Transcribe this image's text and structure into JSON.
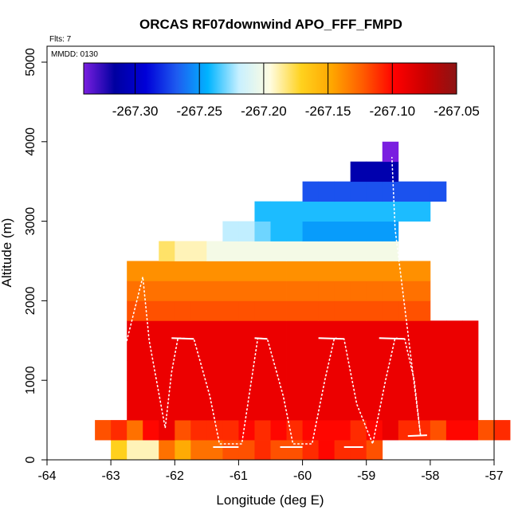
{
  "chart_data": {
    "type": "heatmap",
    "title": "ORCAS RF07downwind APO_FFF_FMPD",
    "flights_label": "Flts: 7",
    "date_label": "MMDD: 0130",
    "xlabel": "Longitude (deg E)",
    "ylabel": "Altitude (m)",
    "xlim": [
      -64,
      -57
    ],
    "ylim": [
      0,
      5200
    ],
    "xticks": [
      "-64",
      "-63",
      "-62",
      "-61",
      "-60",
      "-59",
      "-58",
      "-57"
    ],
    "yticks": [
      "0",
      "1000",
      "2000",
      "3000",
      "4000",
      "5000"
    ],
    "colorbar": {
      "range": [
        -267.34,
        -267.05
      ],
      "ticks": [
        -267.3,
        -267.25,
        -267.2,
        -267.15,
        -267.1,
        -267.05
      ],
      "tick_labels": [
        "-267.30",
        "-267.25",
        "-267.20",
        "-267.15",
        "-267.10",
        "-267.05"
      ],
      "colors": [
        "#7a1fe0",
        "#0000a0",
        "#0000d8",
        "#1e5cf0",
        "#00b4ff",
        "#c8f0ff",
        "#fffce0",
        "#ffd21e",
        "#ffa500",
        "#ff5a00",
        "#ff0000",
        "#c80000",
        "#8c1414"
      ]
    },
    "cell_lon_width": 0.25,
    "cell_alt_height": 250,
    "rows": [
      {
        "alt": 0,
        "lon_start": -63.0,
        "values": [
          -267.17,
          -267.19,
          -267.19,
          -267.13,
          -267.15,
          -267.13,
          -267.13,
          -267.12,
          -267.12,
          -267.11,
          -267.12,
          -267.12,
          -267.11,
          -267.1,
          -267.11,
          -267.11,
          -267.12
        ]
      },
      {
        "alt": 250,
        "lon_start": -63.25,
        "values": [
          -267.12,
          -267.11,
          -267.13,
          -267.1,
          -267.09,
          -267.12,
          -267.11,
          -267.11,
          -267.11,
          -267.1,
          -267.11,
          -267.1,
          -267.11,
          -267.1,
          -267.1,
          -267.1,
          -267.11,
          -267.1,
          -267.09,
          -267.11,
          -267.11,
          -267.12,
          -267.1,
          -267.1,
          -267.12,
          -267.11
        ]
      },
      {
        "alt": 500,
        "lon_start": -62.75,
        "values": [
          -267.09,
          -267.09,
          -267.09,
          -267.09,
          -267.09,
          -267.09,
          -267.09,
          -267.09,
          -267.09,
          -267.09,
          -267.09,
          -267.09,
          -267.09,
          -267.09,
          -267.09,
          -267.09,
          -267.09,
          -267.09,
          -267.09,
          -267.09,
          -267.09,
          -267.09
        ]
      },
      {
        "alt": 750,
        "lon_start": -62.75,
        "values": [
          -267.09,
          -267.09,
          -267.09,
          -267.09,
          -267.09,
          -267.09,
          -267.09,
          -267.09,
          -267.09,
          -267.09,
          -267.09,
          -267.09,
          -267.09,
          -267.09,
          -267.09,
          -267.09,
          -267.09,
          -267.09,
          -267.09,
          -267.09,
          -267.09,
          -267.09
        ]
      },
      {
        "alt": 1000,
        "lon_start": -62.75,
        "values": [
          -267.09,
          -267.09,
          -267.09,
          -267.09,
          -267.09,
          -267.09,
          -267.09,
          -267.09,
          -267.09,
          -267.09,
          -267.09,
          -267.09,
          -267.09,
          -267.09,
          -267.09,
          -267.09,
          -267.09,
          -267.09,
          -267.09,
          -267.09,
          -267.09,
          -267.09
        ]
      },
      {
        "alt": 1250,
        "lon_start": -62.75,
        "values": [
          -267.09,
          -267.09,
          -267.09,
          -267.09,
          -267.09,
          -267.09,
          -267.09,
          -267.09,
          -267.09,
          -267.09,
          -267.09,
          -267.09,
          -267.09,
          -267.09,
          -267.09,
          -267.09,
          -267.09,
          -267.09,
          -267.09,
          -267.09,
          -267.09,
          -267.09
        ]
      },
      {
        "alt": 1500,
        "lon_start": -62.75,
        "values": [
          -267.09,
          -267.09,
          -267.09,
          -267.09,
          -267.09,
          -267.09,
          -267.09,
          -267.09,
          -267.09,
          -267.09,
          -267.09,
          -267.09,
          -267.09,
          -267.09,
          -267.09,
          -267.09,
          -267.09,
          -267.09,
          -267.09,
          -267.09,
          -267.09,
          -267.09
        ]
      },
      {
        "alt": 1750,
        "lon_start": -62.75,
        "values": [
          -267.12,
          -267.12,
          -267.12,
          -267.12,
          -267.12,
          -267.12,
          -267.12,
          -267.12,
          -267.12,
          -267.12,
          -267.12,
          -267.12,
          -267.12,
          -267.12,
          -267.12,
          -267.12,
          -267.12,
          -267.12,
          -267.12
        ]
      },
      {
        "alt": 2000,
        "lon_start": -62.75,
        "values": [
          -267.13,
          -267.13,
          -267.13,
          -267.13,
          -267.13,
          -267.13,
          -267.13,
          -267.13,
          -267.13,
          -267.13,
          -267.13,
          -267.13,
          -267.13,
          -267.13,
          -267.13,
          -267.13,
          -267.13,
          -267.13,
          -267.13
        ]
      },
      {
        "alt": 2250,
        "lon_start": -62.75,
        "values": [
          -267.14,
          -267.14,
          -267.14,
          -267.14,
          -267.14,
          -267.14,
          -267.14,
          -267.14,
          -267.14,
          -267.14,
          -267.14,
          -267.14,
          -267.14,
          -267.14,
          -267.14,
          -267.14,
          -267.14,
          -267.14,
          -267.14
        ]
      },
      {
        "alt": 2500,
        "lon_start": -62.25,
        "values": [
          -267.18,
          -267.19,
          -267.19,
          -267.2,
          -267.2,
          -267.2,
          -267.2,
          -267.2,
          -267.2,
          -267.2,
          -267.2,
          -267.2,
          -267.2,
          -267.2,
          -267.2
        ]
      },
      {
        "alt": 2750,
        "lon_start": -61.25,
        "values": [
          -267.22,
          -267.22,
          -267.23,
          -267.24,
          -267.24,
          -267.25,
          -267.25,
          -267.25,
          -267.25,
          -267.25,
          -267.25
        ]
      },
      {
        "alt": 3000,
        "lon_start": -60.75,
        "values": [
          -267.24,
          -267.24,
          -267.24,
          -267.24,
          -267.24,
          -267.24,
          -267.24,
          -267.24,
          -267.24,
          -267.24,
          -267.24
        ]
      },
      {
        "alt": 3250,
        "lon_start": -60.0,
        "values": [
          -267.27,
          -267.27,
          -267.27,
          -267.27,
          -267.27,
          -267.27,
          -267.27,
          -267.27,
          -267.27
        ]
      },
      {
        "alt": 3500,
        "lon_start": -59.25,
        "values": [
          -267.31,
          -267.31,
          -267.31
        ]
      },
      {
        "alt": 3750,
        "lon_start": -58.75,
        "values": [
          -267.34
        ]
      }
    ]
  }
}
